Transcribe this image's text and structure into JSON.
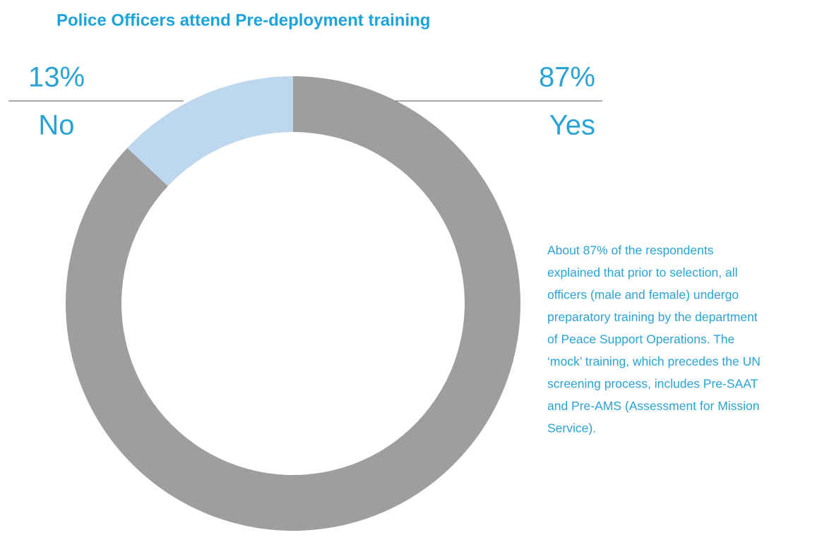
{
  "chart_data": {
    "type": "pie",
    "donut": true,
    "title": "Police Officers attend Pre-deployment training",
    "categories": [
      "Yes",
      "No"
    ],
    "values": [
      87,
      13
    ],
    "value_labels": [
      "87%",
      "13%"
    ],
    "colors": [
      "#9e9e9e",
      "#bdd7ee"
    ],
    "annotation": [
      "About 87% of the respondents",
      "explained that prior to selection, all",
      "officers (male and female) undergo",
      "preparatory training by the department",
      "of Peace Support Operations. The",
      "‘mock’ training, which precedes the UN",
      "screening process, includes Pre-SAAT",
      "and Pre-AMS (Assessment for Mission",
      "Service)."
    ]
  }
}
